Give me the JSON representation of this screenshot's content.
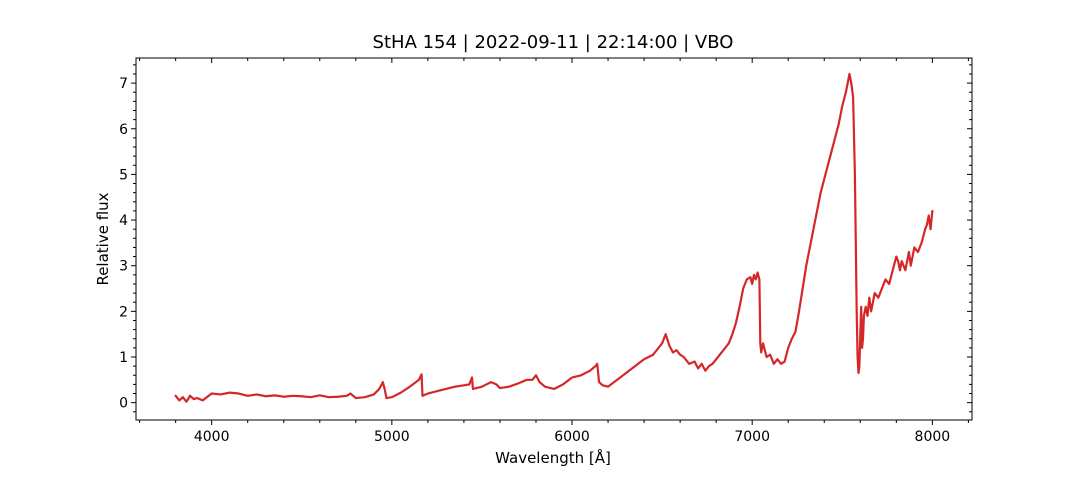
{
  "chart_data": {
    "type": "line",
    "title": "StHA 154 | 2022-09-11 | 22:14:00 | VBO",
    "xlabel": "Wavelength [Å]",
    "ylabel": "Relative flux",
    "xlim": [
      3580,
      8220
    ],
    "ylim": [
      -0.38,
      7.55
    ],
    "xticks": [
      4000,
      5000,
      6000,
      7000,
      8000
    ],
    "yticks": [
      0,
      1,
      2,
      3,
      4,
      5,
      6,
      7
    ],
    "grid": false,
    "line_color": "#d62728",
    "series": [
      {
        "x": [
          3800,
          3820,
          3840,
          3860,
          3880,
          3900,
          3920,
          3950,
          4000,
          4050,
          4100,
          4150,
          4200,
          4250,
          4300,
          4350,
          4400,
          4450,
          4500,
          4550,
          4600,
          4650,
          4700,
          4750,
          4770,
          4800,
          4850,
          4900,
          4930,
          4950,
          4960,
          4970,
          5000,
          5050,
          5100,
          5150,
          5165,
          5170,
          5200,
          5250,
          5300,
          5350,
          5400,
          5430,
          5445,
          5450,
          5500,
          5550,
          5580,
          5600,
          5650,
          5700,
          5750,
          5780,
          5800,
          5820,
          5850,
          5900,
          5950,
          6000,
          6050,
          6100,
          6130,
          6140,
          6150,
          6170,
          6200,
          6250,
          6300,
          6350,
          6400,
          6450,
          6480,
          6500,
          6520,
          6540,
          6560,
          6580,
          6600,
          6620,
          6650,
          6680,
          6700,
          6720,
          6740,
          6760,
          6780,
          6800,
          6830,
          6850,
          6870,
          6890,
          6910,
          6930,
          6950,
          6970,
          6990,
          7000,
          7010,
          7020,
          7030,
          7040,
          7045,
          7050,
          7060,
          7080,
          7100,
          7120,
          7140,
          7160,
          7180,
          7200,
          7220,
          7240,
          7260,
          7280,
          7300,
          7320,
          7340,
          7360,
          7380,
          7400,
          7420,
          7440,
          7460,
          7480,
          7500,
          7520,
          7540,
          7550,
          7560,
          7570,
          7575,
          7580,
          7585,
          7590,
          7595,
          7600,
          7605,
          7610,
          7615,
          7620,
          7630,
          7640,
          7650,
          7660,
          7670,
          7680,
          7700,
          7720,
          7740,
          7760,
          7780,
          7800,
          7810,
          7820,
          7830,
          7850,
          7870,
          7880,
          7890,
          7900,
          7920,
          7940,
          7960,
          7970,
          7980,
          7990,
          8000
        ],
        "y": [
          0.15,
          0.05,
          0.12,
          0.02,
          0.15,
          0.08,
          0.1,
          0.05,
          0.2,
          0.18,
          0.22,
          0.2,
          0.15,
          0.18,
          0.14,
          0.16,
          0.13,
          0.15,
          0.14,
          0.12,
          0.16,
          0.12,
          0.13,
          0.15,
          0.2,
          0.1,
          0.12,
          0.18,
          0.3,
          0.45,
          0.3,
          0.1,
          0.12,
          0.22,
          0.35,
          0.5,
          0.62,
          0.15,
          0.2,
          0.25,
          0.3,
          0.35,
          0.38,
          0.4,
          0.55,
          0.3,
          0.35,
          0.45,
          0.4,
          0.32,
          0.35,
          0.42,
          0.5,
          0.5,
          0.6,
          0.45,
          0.35,
          0.3,
          0.4,
          0.55,
          0.6,
          0.7,
          0.8,
          0.85,
          0.45,
          0.38,
          0.35,
          0.5,
          0.65,
          0.8,
          0.95,
          1.05,
          1.2,
          1.3,
          1.5,
          1.25,
          1.1,
          1.15,
          1.05,
          1.0,
          0.85,
          0.9,
          0.75,
          0.85,
          0.7,
          0.8,
          0.85,
          0.95,
          1.1,
          1.2,
          1.3,
          1.5,
          1.75,
          2.1,
          2.5,
          2.7,
          2.75,
          2.6,
          2.8,
          2.7,
          2.85,
          2.7,
          1.3,
          1.1,
          1.3,
          1.0,
          1.05,
          0.85,
          0.95,
          0.85,
          0.9,
          1.2,
          1.4,
          1.55,
          2.0,
          2.5,
          3.0,
          3.4,
          3.8,
          4.2,
          4.6,
          4.9,
          5.2,
          5.5,
          5.8,
          6.1,
          6.5,
          6.8,
          7.2,
          7.0,
          6.7,
          5.0,
          3.5,
          2.0,
          1.0,
          0.65,
          0.8,
          1.5,
          2.1,
          1.2,
          1.4,
          1.9,
          2.1,
          1.9,
          2.3,
          2.0,
          2.2,
          2.4,
          2.3,
          2.5,
          2.7,
          2.6,
          2.9,
          3.2,
          3.1,
          2.9,
          3.1,
          2.9,
          3.3,
          3.0,
          3.2,
          3.4,
          3.3,
          3.5,
          3.8,
          3.9,
          4.1,
          3.8,
          4.2
        ]
      }
    ]
  }
}
